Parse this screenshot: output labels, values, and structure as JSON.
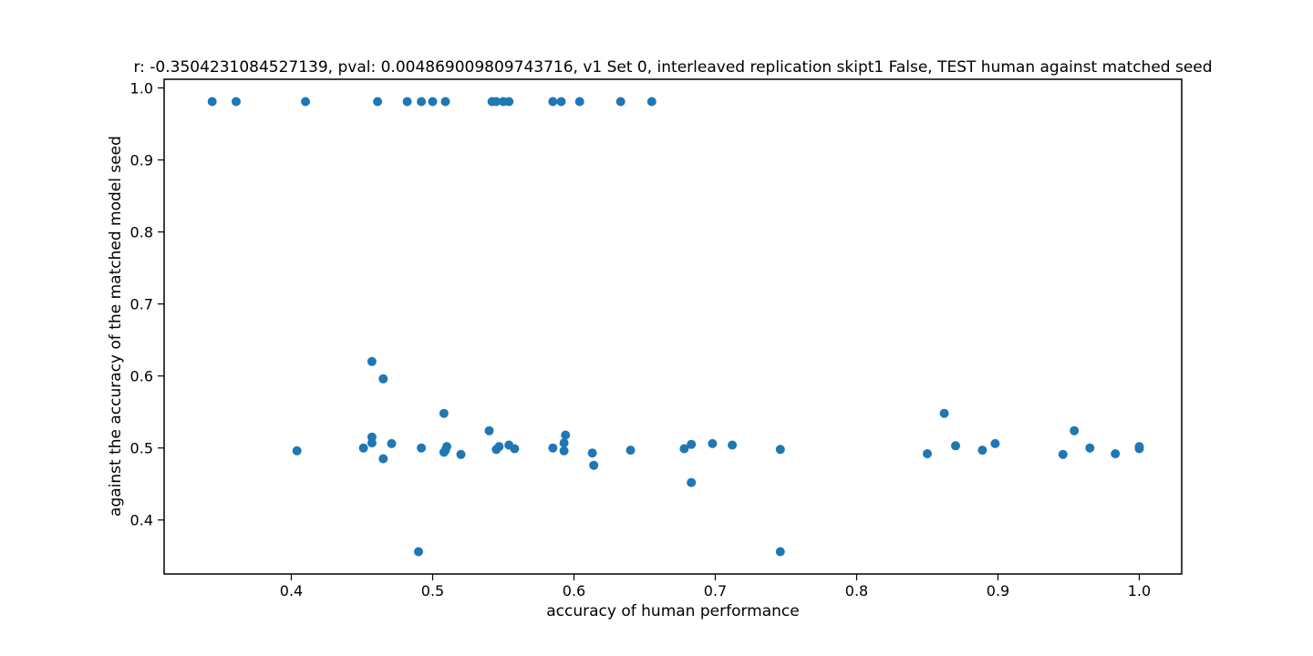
{
  "chart_data": {
    "type": "scatter",
    "title": "r: -0.3504231084527139, pval: 0.004869009809743716, v1 Set 0, interleaved replication skipt1 False,  TEST human against matched seed",
    "xlabel": "accuracy of human performance",
    "ylabel": "against the accuracy of the matched model seed",
    "xlim": [
      0.31,
      1.03
    ],
    "ylim": [
      0.325,
      1.012
    ],
    "xticks": [
      0.4,
      0.5,
      0.6,
      0.7,
      0.8,
      0.9,
      1.0
    ],
    "xtick_labels": [
      "0.4",
      "0.5",
      "0.6",
      "0.7",
      "0.8",
      "0.9",
      "1.0"
    ],
    "yticks": [
      0.4,
      0.5,
      0.6,
      0.7,
      0.8,
      0.9,
      1.0
    ],
    "ytick_labels": [
      "0.4",
      "0.5",
      "0.6",
      "0.7",
      "0.8",
      "0.9",
      "1.0"
    ],
    "grid": false,
    "marker_color": "#1f77b4",
    "points": [
      {
        "x": 0.344,
        "y": 0.981
      },
      {
        "x": 0.361,
        "y": 0.981
      },
      {
        "x": 0.41,
        "y": 0.981
      },
      {
        "x": 0.461,
        "y": 0.981
      },
      {
        "x": 0.482,
        "y": 0.981
      },
      {
        "x": 0.492,
        "y": 0.981
      },
      {
        "x": 0.5,
        "y": 0.981
      },
      {
        "x": 0.509,
        "y": 0.981
      },
      {
        "x": 0.542,
        "y": 0.981
      },
      {
        "x": 0.545,
        "y": 0.981
      },
      {
        "x": 0.55,
        "y": 0.981
      },
      {
        "x": 0.554,
        "y": 0.981
      },
      {
        "x": 0.585,
        "y": 0.981
      },
      {
        "x": 0.591,
        "y": 0.981
      },
      {
        "x": 0.604,
        "y": 0.981
      },
      {
        "x": 0.633,
        "y": 0.981
      },
      {
        "x": 0.655,
        "y": 0.981
      },
      {
        "x": 0.457,
        "y": 0.62
      },
      {
        "x": 0.465,
        "y": 0.596
      },
      {
        "x": 0.508,
        "y": 0.548
      },
      {
        "x": 0.862,
        "y": 0.548
      },
      {
        "x": 0.54,
        "y": 0.524
      },
      {
        "x": 0.954,
        "y": 0.524
      },
      {
        "x": 0.594,
        "y": 0.518
      },
      {
        "x": 0.457,
        "y": 0.515
      },
      {
        "x": 0.457,
        "y": 0.507
      },
      {
        "x": 0.471,
        "y": 0.506
      },
      {
        "x": 0.593,
        "y": 0.507
      },
      {
        "x": 0.698,
        "y": 0.506
      },
      {
        "x": 0.898,
        "y": 0.506
      },
      {
        "x": 0.683,
        "y": 0.505
      },
      {
        "x": 0.554,
        "y": 0.504
      },
      {
        "x": 0.712,
        "y": 0.504
      },
      {
        "x": 0.51,
        "y": 0.502
      },
      {
        "x": 0.547,
        "y": 0.502
      },
      {
        "x": 0.87,
        "y": 0.503
      },
      {
        "x": 1.0,
        "y": 0.502
      },
      {
        "x": 0.451,
        "y": 0.5
      },
      {
        "x": 0.492,
        "y": 0.5
      },
      {
        "x": 0.585,
        "y": 0.5
      },
      {
        "x": 0.965,
        "y": 0.5
      },
      {
        "x": 1.0,
        "y": 0.499
      },
      {
        "x": 0.558,
        "y": 0.499
      },
      {
        "x": 0.678,
        "y": 0.499
      },
      {
        "x": 0.746,
        "y": 0.498
      },
      {
        "x": 0.545,
        "y": 0.498
      },
      {
        "x": 0.509,
        "y": 0.497
      },
      {
        "x": 0.64,
        "y": 0.497
      },
      {
        "x": 0.889,
        "y": 0.497
      },
      {
        "x": 0.404,
        "y": 0.496
      },
      {
        "x": 0.593,
        "y": 0.496
      },
      {
        "x": 0.508,
        "y": 0.494
      },
      {
        "x": 0.613,
        "y": 0.493
      },
      {
        "x": 0.85,
        "y": 0.492
      },
      {
        "x": 0.983,
        "y": 0.492
      },
      {
        "x": 0.52,
        "y": 0.491
      },
      {
        "x": 0.946,
        "y": 0.491
      },
      {
        "x": 0.465,
        "y": 0.485
      },
      {
        "x": 0.614,
        "y": 0.476
      },
      {
        "x": 0.683,
        "y": 0.452
      },
      {
        "x": 0.49,
        "y": 0.356
      },
      {
        "x": 0.746,
        "y": 0.356
      }
    ]
  }
}
